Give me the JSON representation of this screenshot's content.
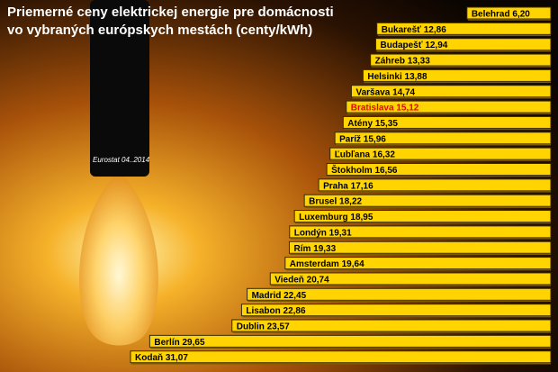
{
  "chart_data": {
    "type": "bar",
    "title": "Priemerné ceny elektrickej energie pre domácnosti",
    "subtitle": "vo vybraných európskych mestách (centy/kWh)",
    "source": "Eurostat 04..2014",
    "categories": [
      "Belehrad",
      "Bukarešť",
      "Budapešť",
      "Záhreb",
      "Helsinki",
      "Varšava",
      "Bratislava",
      "Atény",
      "Paríž",
      "Ľubľana",
      "Štokholm",
      "Praha",
      "Brusel",
      "Luxemburg",
      "Londýn",
      "Rím",
      "Amsterdam",
      "Viedeň",
      "Madrid",
      "Lisabon",
      "Dublin",
      "Berlín",
      "Kodaň"
    ],
    "values": [
      6.2,
      12.86,
      12.94,
      13.33,
      13.88,
      14.74,
      15.12,
      15.35,
      15.96,
      16.32,
      16.56,
      17.16,
      18.22,
      18.95,
      19.31,
      19.33,
      19.64,
      20.74,
      22.45,
      22.86,
      23.57,
      29.65,
      31.07
    ],
    "value_labels": [
      "6,20",
      "12,86",
      "12,94",
      "13,33",
      "13,88",
      "14,74",
      "15,12",
      "15,35",
      "15,96",
      "16,32",
      "16,56",
      "17,16",
      "18,22",
      "18,95",
      "19,31",
      "19,33",
      "19,64",
      "20,74",
      "22,45",
      "22,86",
      "23,57",
      "29,65",
      "31,07"
    ],
    "color": "#ffd400",
    "highlight": "Bratislava",
    "highlight_color": "#e3001b"
  }
}
